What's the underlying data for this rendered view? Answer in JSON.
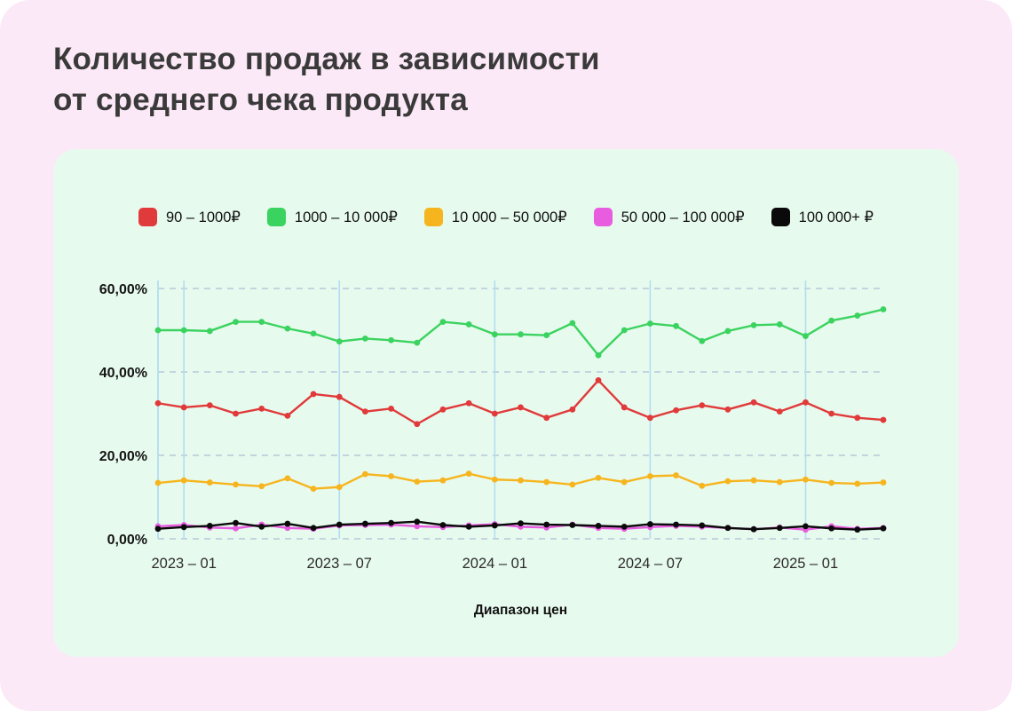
{
  "title": {
    "line1": "Количество продаж в зависимости",
    "line2": "от среднего чека продукта"
  },
  "colors": {
    "page_background": "#ffffff",
    "card_background": "#fce9f7",
    "panel_background": "#e7faee",
    "title_text": "#3a3a3a",
    "grid_dash": "#bcc6da",
    "grid_vertical": "#b3ddf2"
  },
  "chart_data": {
    "type": "line",
    "title": "Количество продаж в зависимости от среднего чека продукта",
    "xlabel": "Диапазон цен",
    "ylabel": "",
    "ylim": [
      0,
      60
    ],
    "grid": {
      "horizontal": "dashed",
      "vertical": "solid"
    },
    "legend_position": "top",
    "x": [
      "2022-12",
      "2023-01",
      "2023-02",
      "2023-03",
      "2023-04",
      "2023-05",
      "2023-06",
      "2023-07",
      "2023-08",
      "2023-09",
      "2023-10",
      "2023-11",
      "2023-12",
      "2024-01",
      "2024-02",
      "2024-03",
      "2024-04",
      "2024-05",
      "2024-06",
      "2024-07",
      "2024-08",
      "2024-09",
      "2024-10",
      "2024-11",
      "2024-12",
      "2025-01",
      "2025-02",
      "2025-03",
      "2025-04"
    ],
    "x_ticks": [
      {
        "index": 1,
        "label": "2023 – 01"
      },
      {
        "index": 7,
        "label": "2023 – 07"
      },
      {
        "index": 13,
        "label": "2024 – 01"
      },
      {
        "index": 19,
        "label": "2024 – 07"
      },
      {
        "index": 25,
        "label": "2025 – 01"
      }
    ],
    "y_ticks": [
      {
        "value": 60,
        "label": "60,00%"
      },
      {
        "value": 40,
        "label": "40,00%"
      },
      {
        "value": 20,
        "label": "20,00%"
      },
      {
        "value": 0,
        "label": "0,00%"
      }
    ],
    "series": [
      {
        "id": "90-1000",
        "name": "90 – 1000₽",
        "color": "#e03a3a",
        "values": [
          32.5,
          31.5,
          32,
          30,
          31.2,
          29.5,
          34.7,
          34,
          30.5,
          31.2,
          27.5,
          31,
          32.5,
          30,
          31.5,
          29,
          31,
          38,
          31.5,
          29,
          30.8,
          32,
          31,
          32.7,
          30.5,
          32.7,
          30,
          29,
          28.5
        ]
      },
      {
        "id": "1000-10000",
        "name": "1000 – 10 000₽",
        "color": "#3bd35f",
        "values": [
          50,
          50,
          49.8,
          52,
          52,
          50.4,
          49.2,
          47.3,
          48,
          47.6,
          47,
          52,
          51.4,
          49,
          49,
          48.8,
          51.7,
          44,
          50,
          51.6,
          51,
          47.4,
          49.8,
          51.2,
          51.4,
          48.6,
          52.3,
          53.5,
          55
        ]
      },
      {
        "id": "10000-50000",
        "name": "10 000 – 50 000₽",
        "color": "#f6b51e",
        "values": [
          13.4,
          14,
          13.5,
          13,
          12.6,
          14.5,
          12,
          12.4,
          15.5,
          15,
          13.7,
          14,
          15.6,
          14.2,
          14,
          13.6,
          13,
          14.6,
          13.6,
          15,
          15.2,
          12.7,
          13.8,
          14,
          13.6,
          14.2,
          13.4,
          13.2,
          13.5
        ]
      },
      {
        "id": "50000-100000",
        "name": "50 000 – 100 000₽",
        "color": "#e85ce0",
        "values": [
          3,
          3.3,
          2.7,
          2.5,
          3.4,
          2.6,
          2.4,
          3.2,
          3.3,
          3.4,
          3,
          2.8,
          3.2,
          3.5,
          2.9,
          2.7,
          3.4,
          2.6,
          2.4,
          2.8,
          3.1,
          2.9,
          2.6,
          2.3,
          2.7,
          2.2,
          3,
          2.4,
          2.6
        ]
      },
      {
        "id": "100000-plus",
        "name": "100 000+ ₽",
        "color": "#0a0a0a",
        "values": [
          2.4,
          2.8,
          3.1,
          3.8,
          2.9,
          3.6,
          2.6,
          3.4,
          3.6,
          3.8,
          4.1,
          3.3,
          2.9,
          3.2,
          3.7,
          3.4,
          3.3,
          3.1,
          2.9,
          3.5,
          3.4,
          3.2,
          2.6,
          2.3,
          2.6,
          3,
          2.5,
          2.2,
          2.5
        ]
      }
    ]
  }
}
